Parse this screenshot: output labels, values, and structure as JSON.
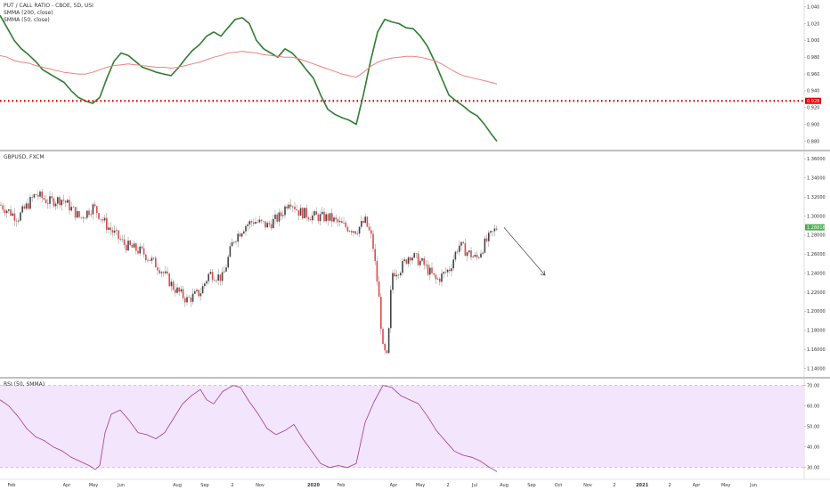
{
  "colors": {
    "pcr_line": "#2e7d32",
    "smma200": "#f08080",
    "hline": "#dd0000",
    "bull_candle": "#444444",
    "bear_candle": "#e04a4a",
    "rsi_line": "#9c3a96",
    "rsi_band": "#f3e5fb",
    "rsi_band_line": "#c89ad6",
    "price_badge": "#4caf50",
    "hline_badge": "#dd0000"
  },
  "chart_data": [
    {
      "type": "line",
      "title": "PUT / CALL RATIO - CBOE, 5D, USI",
      "legend_entries": [
        "PUT / CALL RATIO - CBOE, 5D, USI",
        "SMMA (200, close)",
        "SMMA (50, close)"
      ],
      "x": [
        0,
        8,
        16,
        24,
        32,
        40,
        48,
        56,
        64,
        72,
        80,
        88,
        96,
        104,
        112,
        120,
        128,
        136,
        144,
        152,
        160,
        168,
        176,
        184,
        192,
        200,
        208,
        216,
        224,
        232,
        240,
        248,
        256,
        264,
        272,
        280,
        288,
        296,
        304,
        312,
        320,
        328,
        336,
        344,
        352,
        360,
        368,
        376,
        384,
        392,
        400,
        408,
        416,
        424,
        432,
        440,
        448,
        456,
        464,
        472,
        480,
        488,
        496,
        504,
        512,
        520,
        528,
        536,
        544,
        552,
        558
      ],
      "series": [
        {
          "name": "SMMA (50, close)",
          "values": [
            1.03,
            1.015,
            1.0,
            0.99,
            0.983,
            0.975,
            0.965,
            0.96,
            0.955,
            0.95,
            0.94,
            0.932,
            0.928,
            0.925,
            0.932,
            0.955,
            0.975,
            0.985,
            0.982,
            0.975,
            0.968,
            0.965,
            0.962,
            0.96,
            0.958,
            0.967,
            0.978,
            0.988,
            0.995,
            1.005,
            1.01,
            1.005,
            1.015,
            1.025,
            1.027,
            1.02,
            1.0,
            0.99,
            0.985,
            0.98,
            0.99,
            0.985,
            0.976,
            0.965,
            0.955,
            0.935,
            0.918,
            0.912,
            0.908,
            0.905,
            0.9,
            0.935,
            0.975,
            1.01,
            1.025,
            1.022,
            1.02,
            1.015,
            1.014,
            1.005,
            0.993,
            0.975,
            0.955,
            0.935,
            0.928,
            0.922,
            0.915,
            0.91,
            0.9,
            0.888,
            0.88
          ]
        },
        {
          "name": "SMMA (200, close)",
          "values": [
            0.982,
            0.98,
            0.976,
            0.974,
            0.973,
            0.97,
            0.968,
            0.966,
            0.964,
            0.962,
            0.961,
            0.96,
            0.96,
            0.962,
            0.965,
            0.968,
            0.97,
            0.971,
            0.972,
            0.971,
            0.97,
            0.969,
            0.968,
            0.968,
            0.967,
            0.968,
            0.97,
            0.972,
            0.974,
            0.977,
            0.98,
            0.982,
            0.985,
            0.986,
            0.987,
            0.986,
            0.985,
            0.983,
            0.982,
            0.981,
            0.98,
            0.98,
            0.978,
            0.975,
            0.972,
            0.969,
            0.966,
            0.963,
            0.96,
            0.958,
            0.956,
            0.962,
            0.969,
            0.974,
            0.977,
            0.979,
            0.98,
            0.981,
            0.981,
            0.98,
            0.978,
            0.976,
            0.972,
            0.967,
            0.962,
            0.958,
            0.956,
            0.954,
            0.952,
            0.95,
            0.948
          ]
        }
      ],
      "horizontal_line": 0.928,
      "horizontal_line_label": "0.928",
      "y_ticks": [
        "1.040",
        "1.020",
        "1.000",
        "0.980",
        "0.960",
        "0.940",
        "0.920",
        "0.900",
        "0.880"
      ],
      "ylim": [
        0.872,
        1.046
      ]
    },
    {
      "type": "candlestick",
      "title": "GBPUSD, FXCM",
      "current_value_label": "1.28818",
      "y_ticks": [
        "1.36000",
        "1.34000",
        "1.32000",
        "1.30000",
        "1.28000",
        "1.26000",
        "1.24000",
        "1.22000",
        "1.20000",
        "1.18000",
        "1.16000",
        "1.14000"
      ],
      "ylim": [
        1.134,
        1.366
      ],
      "anchors_x": [
        0,
        20,
        40,
        55,
        70,
        90,
        105,
        120,
        140,
        160,
        180,
        195,
        210,
        225,
        235,
        250,
        262,
        275,
        285,
        300,
        315,
        325,
        335,
        350,
        370,
        385,
        400,
        410,
        418,
        425,
        430,
        435,
        440,
        450,
        460,
        475,
        490,
        505,
        515,
        525,
        535,
        545,
        558
      ],
      "anchors_y": [
        1.312,
        1.298,
        1.323,
        1.315,
        1.318,
        1.298,
        1.31,
        1.29,
        1.27,
        1.262,
        1.245,
        1.225,
        1.212,
        1.22,
        1.24,
        1.235,
        1.275,
        1.29,
        1.295,
        1.29,
        1.3,
        1.318,
        1.305,
        1.3,
        1.298,
        1.29,
        1.285,
        1.295,
        1.275,
        1.22,
        1.16,
        1.15,
        1.24,
        1.245,
        1.26,
        1.25,
        1.232,
        1.245,
        1.27,
        1.262,
        1.255,
        1.272,
        1.288
      ],
      "projection_arrow": {
        "from": {
          "x": 566,
          "y": 1.288
        },
        "to": {
          "x": 612,
          "y": 1.238
        }
      }
    },
    {
      "type": "line",
      "title": "RSI (50, SMMA)",
      "x": [
        0,
        10,
        20,
        30,
        40,
        50,
        60,
        70,
        80,
        90,
        100,
        107,
        112,
        118,
        125,
        135,
        145,
        155,
        165,
        175,
        185,
        195,
        205,
        215,
        225,
        232,
        240,
        250,
        262,
        270,
        280,
        290,
        300,
        310,
        320,
        330,
        340,
        350,
        360,
        370,
        380,
        390,
        400,
        410,
        420,
        430,
        440,
        450,
        460,
        470,
        480,
        490,
        500,
        510,
        520,
        530,
        540,
        550,
        558
      ],
      "values": [
        63,
        60,
        55,
        49,
        45,
        43,
        40,
        38,
        35,
        33,
        31,
        29,
        31,
        47,
        56,
        58,
        53,
        47,
        46,
        44,
        47,
        54,
        61,
        65,
        68,
        63,
        61,
        67,
        70,
        69,
        62,
        56,
        49,
        46,
        48,
        51,
        44,
        38,
        32,
        30,
        31,
        30,
        32,
        52,
        62,
        70,
        69,
        65,
        63,
        61,
        55,
        48,
        43,
        38,
        36,
        35,
        33,
        30,
        28
      ],
      "band": [
        30,
        70
      ],
      "y_ticks": [
        "70.00",
        "60.00",
        "50.00",
        "40.00",
        "30.00"
      ],
      "ylim": [
        26,
        72
      ]
    }
  ],
  "x_axis": {
    "labels": [
      {
        "text": "Feb",
        "x": 13
      },
      {
        "text": "Apr",
        "x": 75
      },
      {
        "text": "May",
        "x": 105
      },
      {
        "text": "Jun",
        "x": 136
      },
      {
        "text": "Aug",
        "x": 199
      },
      {
        "text": "Sep",
        "x": 230
      },
      {
        "text": "2",
        "x": 261
      },
      {
        "text": "Nov",
        "x": 292
      },
      {
        "text": "2020",
        "x": 352
      },
      {
        "text": "Feb",
        "x": 383
      },
      {
        "text": "Apr",
        "x": 442
      },
      {
        "text": "May",
        "x": 472
      },
      {
        "text": "2",
        "x": 503
      },
      {
        "text": "Jul",
        "x": 533
      },
      {
        "text": "Aug",
        "x": 566
      },
      {
        "text": "Sep",
        "x": 597
      },
      {
        "text": "Oct",
        "x": 627
      },
      {
        "text": "Nov",
        "x": 660
      },
      {
        "text": "2",
        "x": 690
      },
      {
        "text": "2021",
        "x": 721
      },
      {
        "text": "2",
        "x": 752
      },
      {
        "text": "Apr",
        "x": 782
      },
      {
        "text": "May",
        "x": 815
      },
      {
        "text": "Jun",
        "x": 846
      }
    ]
  }
}
